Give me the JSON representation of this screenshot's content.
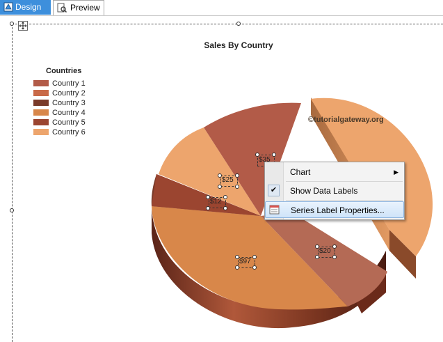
{
  "tabs": [
    {
      "label": "Design",
      "icon": "design-icon",
      "active": true
    },
    {
      "label": "Preview",
      "icon": "preview-icon",
      "active": false
    }
  ],
  "chart": {
    "title": "Sales By Country",
    "legend_title": "Countries",
    "watermark": "©tutorialgateway.org"
  },
  "chart_data": {
    "type": "pie",
    "title": "Sales By Country",
    "legend_title": "Countries",
    "legend_position": "top-left",
    "categories": [
      "Country 1",
      "Country 2",
      "Country 3",
      "Country 4",
      "Country 5",
      "Country 6"
    ],
    "colors": [
      "#b25b48",
      "#c96a48",
      "#7a3b2a",
      "#d8874a",
      "#9b4530",
      "#eda56d"
    ],
    "data_labels": [
      "$35",
      "$20",
      "$97",
      "$12",
      "$25"
    ]
  },
  "context_menu": {
    "items": [
      {
        "label": "Chart",
        "has_submenu": true,
        "checked": false
      },
      {
        "label": "Show Data Labels",
        "has_submenu": false,
        "checked": true
      },
      {
        "label": "Series Label Properties...",
        "has_submenu": false,
        "checked": false,
        "icon": "properties-icon"
      }
    ]
  }
}
